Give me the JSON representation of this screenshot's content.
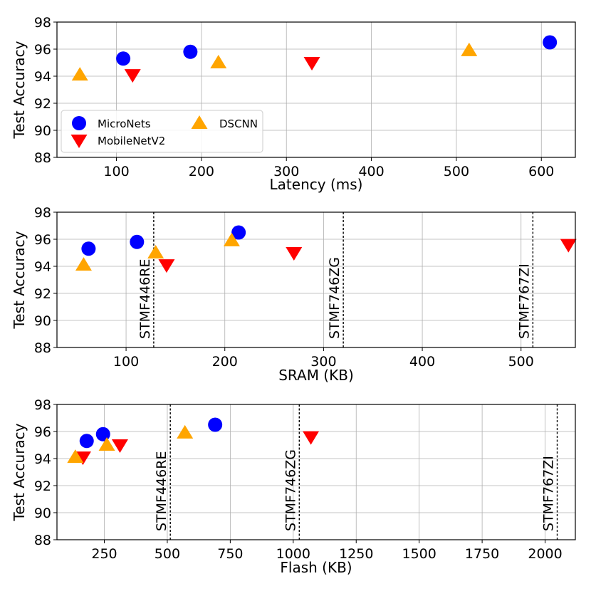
{
  "chart_data": [
    {
      "type": "scatter",
      "xlabel": "Latency (ms)",
      "ylabel": "Test Accuracy",
      "xlim": [
        30,
        640
      ],
      "ylim": [
        88,
        98
      ],
      "xticks": [
        100,
        200,
        300,
        400,
        500,
        600
      ],
      "yticks": [
        88,
        90,
        92,
        94,
        96,
        98
      ],
      "grid": true,
      "legend": {
        "placement": "lower-left",
        "entries": [
          {
            "name": "MicroNets",
            "marker": "circle",
            "color": "#0000ff"
          },
          {
            "name": "MobileNetV2",
            "marker": "triangle-down",
            "color": "#ff0000"
          },
          {
            "name": "DSCNN",
            "marker": "triangle-up",
            "color": "#ffa500"
          }
        ]
      },
      "vlines": [],
      "series": [
        {
          "name": "MicroNets",
          "marker": "circle",
          "color": "#0000ff",
          "points": [
            [
              108,
              95.3
            ],
            [
              187,
              95.8
            ],
            [
              610,
              96.5
            ]
          ]
        },
        {
          "name": "MobileNetV2",
          "marker": "triangle-down",
          "color": "#ff0000",
          "points": [
            [
              119,
              94.1
            ],
            [
              330,
              95.0
            ]
          ]
        },
        {
          "name": "DSCNN",
          "marker": "triangle-up",
          "color": "#ffa500",
          "points": [
            [
              57,
              94.1
            ],
            [
              220,
              95.0
            ],
            [
              515,
              95.9
            ]
          ]
        }
      ]
    },
    {
      "type": "scatter",
      "xlabel": "SRAM (KB)",
      "ylabel": "Test Accuracy",
      "xlim": [
        30,
        555
      ],
      "ylim": [
        88,
        98
      ],
      "xticks": [
        100,
        200,
        300,
        400,
        500
      ],
      "yticks": [
        88,
        90,
        92,
        94,
        96,
        98
      ],
      "grid": true,
      "legend": null,
      "vlines": [
        {
          "x": 128,
          "label": "STMF446RE"
        },
        {
          "x": 320,
          "label": "STMF746ZG"
        },
        {
          "x": 512,
          "label": "STMF767ZI"
        }
      ],
      "series": [
        {
          "name": "MicroNets",
          "marker": "circle",
          "color": "#0000ff",
          "points": [
            [
              62,
              95.3
            ],
            [
              111,
              95.8
            ],
            [
              214,
              96.5
            ]
          ]
        },
        {
          "name": "MobileNetV2",
          "marker": "triangle-down",
          "color": "#ff0000",
          "points": [
            [
              141,
              94.1
            ],
            [
              270,
              95.0
            ],
            [
              548,
              95.6
            ]
          ]
        },
        {
          "name": "DSCNN",
          "marker": "triangle-up",
          "color": "#ffa500",
          "points": [
            [
              57,
              94.1
            ],
            [
              130,
              95.0
            ],
            [
              207,
              95.9
            ]
          ]
        }
      ]
    },
    {
      "type": "scatter",
      "xlabel": "Flash (KB)",
      "ylabel": "Test Accuracy",
      "xlim": [
        62,
        2120
      ],
      "ylim": [
        88,
        98
      ],
      "xticks": [
        250,
        500,
        750,
        1000,
        1250,
        1500,
        1750,
        2000
      ],
      "yticks": [
        88,
        90,
        92,
        94,
        96,
        98
      ],
      "grid": true,
      "legend": null,
      "vlines": [
        {
          "x": 512,
          "label": "STMF446RE"
        },
        {
          "x": 1024,
          "label": "STMF746ZG"
        },
        {
          "x": 2048,
          "label": "STMF767ZI"
        }
      ],
      "series": [
        {
          "name": "MicroNets",
          "marker": "circle",
          "color": "#0000ff",
          "points": [
            [
              180,
              95.3
            ],
            [
              245,
              95.8
            ],
            [
              690,
              96.5
            ]
          ]
        },
        {
          "name": "MobileNetV2",
          "marker": "triangle-down",
          "color": "#ff0000",
          "points": [
            [
              165,
              94.1
            ],
            [
              312,
              95.0
            ],
            [
              1070,
              95.6
            ]
          ]
        },
        {
          "name": "DSCNN",
          "marker": "triangle-up",
          "color": "#ffa500",
          "points": [
            [
              135,
              94.1
            ],
            [
              260,
              95.0
            ],
            [
              570,
              95.9
            ]
          ]
        }
      ]
    }
  ]
}
